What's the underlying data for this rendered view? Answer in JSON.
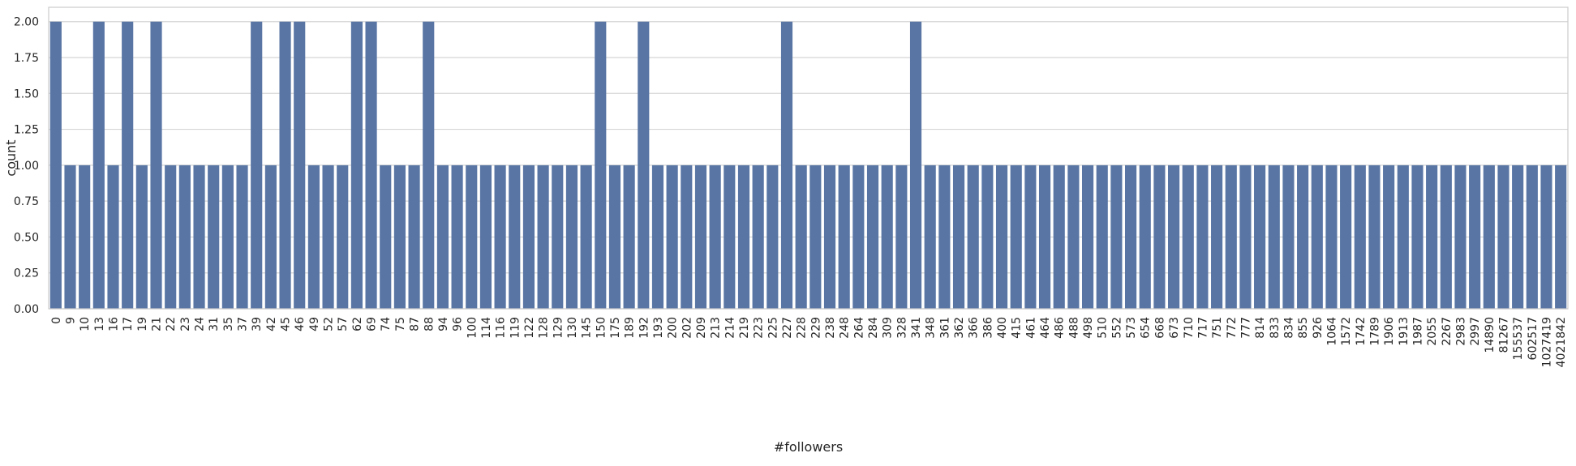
{
  "chart_data": {
    "type": "bar",
    "xlabel": "#followers",
    "ylabel": "count",
    "ylim": [
      0,
      2.1
    ],
    "yticks": [
      "0.00",
      "0.25",
      "0.50",
      "0.75",
      "1.00",
      "1.25",
      "1.50",
      "1.75",
      "2.00"
    ],
    "grid": "y",
    "bar_color": "#5875a4",
    "grid_color": "#d5d5d5",
    "categories": [
      "0",
      "9",
      "10",
      "13",
      "16",
      "17",
      "19",
      "21",
      "22",
      "23",
      "24",
      "31",
      "35",
      "37",
      "39",
      "42",
      "45",
      "46",
      "49",
      "52",
      "57",
      "62",
      "69",
      "74",
      "75",
      "87",
      "88",
      "94",
      "96",
      "100",
      "114",
      "116",
      "119",
      "122",
      "128",
      "129",
      "130",
      "145",
      "150",
      "175",
      "189",
      "192",
      "193",
      "200",
      "202",
      "209",
      "213",
      "214",
      "219",
      "223",
      "225",
      "227",
      "228",
      "229",
      "238",
      "248",
      "264",
      "284",
      "309",
      "328",
      "341",
      "348",
      "361",
      "362",
      "366",
      "386",
      "400",
      "415",
      "461",
      "464",
      "486",
      "488",
      "498",
      "510",
      "552",
      "573",
      "654",
      "668",
      "673",
      "710",
      "717",
      "751",
      "772",
      "777",
      "814",
      "833",
      "834",
      "855",
      "926",
      "1064",
      "1572",
      "1742",
      "1789",
      "1906",
      "1913",
      "1987",
      "2055",
      "2267",
      "2983",
      "2997",
      "14890",
      "81267",
      "155537",
      "602517",
      "1027419",
      "4021842"
    ],
    "values": [
      2,
      1,
      1,
      2,
      1,
      2,
      1,
      2,
      1,
      1,
      1,
      1,
      1,
      1,
      2,
      1,
      2,
      2,
      1,
      1,
      1,
      2,
      2,
      1,
      1,
      1,
      2,
      1,
      1,
      1,
      1,
      1,
      1,
      1,
      1,
      1,
      1,
      1,
      2,
      1,
      1,
      2,
      1,
      1,
      1,
      1,
      1,
      1,
      1,
      1,
      1,
      2,
      1,
      1,
      1,
      1,
      1,
      1,
      1,
      1,
      2,
      1,
      1,
      1,
      1,
      1,
      1,
      1,
      1,
      1,
      1,
      1,
      1,
      1,
      1,
      1,
      1,
      1,
      1,
      1,
      1,
      1,
      1,
      1,
      1,
      1,
      1,
      1,
      1,
      1,
      1,
      1,
      1,
      1,
      1,
      1,
      1,
      1,
      1,
      1,
      1,
      1,
      1,
      1,
      1,
      1
    ]
  }
}
